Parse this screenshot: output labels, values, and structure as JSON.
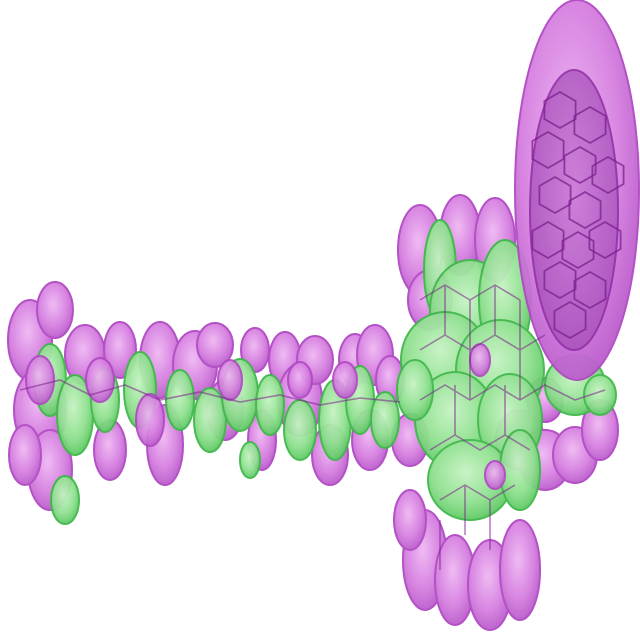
{
  "image": {
    "subject": "molecular-orbital-isosurface",
    "colors": {
      "background": "#ffffff",
      "magenta_lobe": "#d67fe0",
      "magenta_rim": "#a42fb8",
      "magenta_dark": "#7b1f8c",
      "green_lobe": "#8fe08f",
      "green_rim": "#3fb94a",
      "green_dark": "#2a8a33"
    }
  }
}
